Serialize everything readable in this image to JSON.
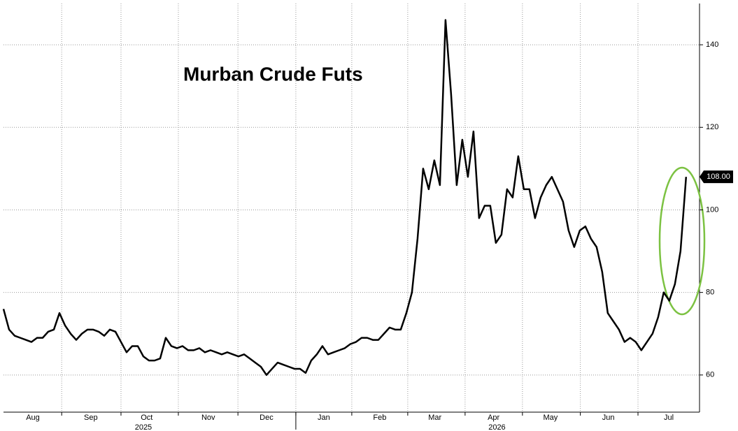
{
  "chart_data": {
    "type": "line",
    "title": "Murban Crude Futs",
    "series": [
      {
        "name": "Murban Crude Futs",
        "color": "#000000",
        "values": [
          76,
          71,
          69.5,
          69,
          68.5,
          68,
          69,
          69,
          70.5,
          71,
          75,
          72,
          70,
          68.5,
          70,
          71,
          71,
          70.5,
          69.5,
          71,
          70.5,
          68,
          65.5,
          67,
          67,
          64.5,
          63.5,
          63.5,
          64,
          69,
          67,
          66.5,
          67,
          66,
          66,
          66.5,
          65.5,
          66,
          65.5,
          65,
          65.5,
          65,
          64.5,
          65,
          64,
          63,
          62,
          60,
          61.5,
          63,
          62.5,
          62,
          61.5,
          61.5,
          60.5,
          63.5,
          65,
          67,
          65,
          65.5,
          66,
          66.5,
          67.5,
          68,
          69,
          69,
          68.5,
          68.5,
          70,
          71.5,
          71,
          71,
          75,
          80,
          93,
          110,
          105,
          112,
          106,
          146,
          128,
          106,
          117,
          108,
          119,
          98,
          101,
          101,
          92,
          94,
          105,
          103,
          113,
          105,
          105,
          98,
          103,
          106,
          108,
          105,
          102,
          95,
          91,
          95,
          96,
          93,
          91,
          85,
          75,
          73,
          71,
          68,
          69,
          68,
          66,
          68,
          70,
          74,
          80,
          78,
          82,
          90,
          108
        ]
      }
    ],
    "xlim": [
      0,
      124.4
    ],
    "xticks": [
      {
        "value": 5.25,
        "label": "Aug"
      },
      {
        "value": 15.6,
        "label": "Sep"
      },
      {
        "value": 25.6,
        "label": "Oct"
      },
      {
        "value": 36.6,
        "label": "Nov"
      },
      {
        "value": 47,
        "label": "Dec"
      },
      {
        "value": 57.25,
        "label": "Jan"
      },
      {
        "value": 67.25,
        "label": "Feb"
      },
      {
        "value": 77.1,
        "label": "Mar"
      },
      {
        "value": 87.6,
        "label": "Apr"
      },
      {
        "value": 97.75,
        "label": "May"
      },
      {
        "value": 108.1,
        "label": "Jun"
      },
      {
        "value": 118.9,
        "label": "Jul"
      }
    ],
    "year_labels": [
      {
        "value": 25,
        "label": "2025"
      },
      {
        "value": 88.2,
        "label": "2026"
      }
    ],
    "year_break": 52.25,
    "xgrid": [
      10.4,
      21,
      31.25,
      41.9,
      52.25,
      62.25,
      72.25,
      82.5,
      92.75,
      103.1,
      113.4
    ],
    "ylim": [
      51,
      150
    ],
    "yticks": [
      60,
      80,
      100,
      120,
      140
    ],
    "grid": true,
    "last_price": {
      "value": 108,
      "label": "108.00"
    }
  }
}
